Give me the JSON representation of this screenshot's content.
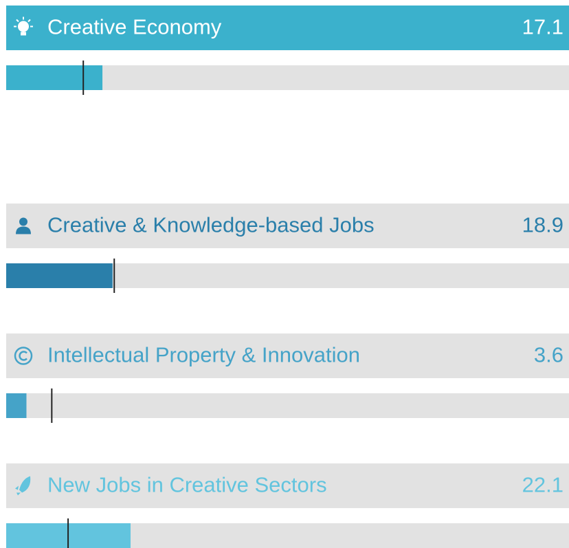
{
  "chart_data": {
    "type": "bar",
    "categories": [
      "Creative Economy",
      "Creative & Knowledge-based Jobs",
      "Intellectual Property & Innovation",
      "New Jobs in Creative Sectors"
    ],
    "values": [
      17.1,
      18.9,
      3.6,
      22.1
    ],
    "markers": [
      13.7,
      19.2,
      8.1,
      11.0
    ],
    "colors": [
      "#3bb1cc",
      "#2a7faa",
      "#45a3c8",
      "#62c4de"
    ],
    "selected": 0,
    "xlim": [
      0,
      100
    ]
  }
}
